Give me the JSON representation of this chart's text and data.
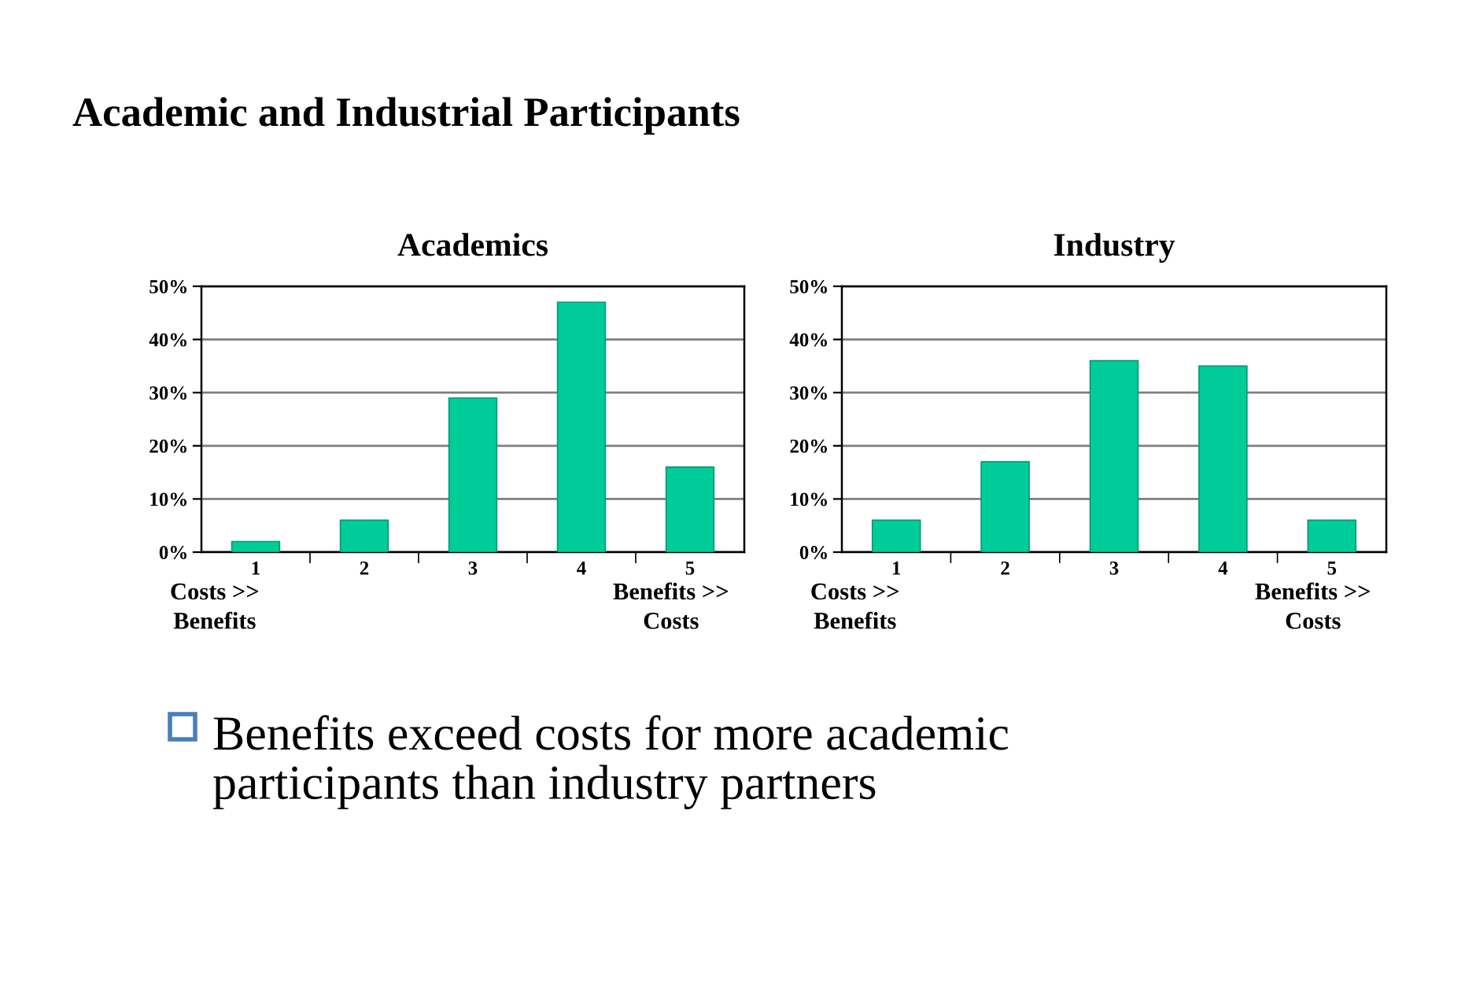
{
  "chart_data": [
    {
      "type": "other",
      "title": "Academic and Industrial Participants",
      "annotations": [
        "Benefits exceed costs for more academic\nparticipants than industry partners"
      ]
    },
    {
      "type": "bar",
      "title": "Academics",
      "categories": [
        "1",
        "2",
        "3",
        "4",
        "5"
      ],
      "values": [
        2,
        6,
        29,
        47,
        16
      ],
      "color": "#00cc99",
      "ylim": [
        0,
        50
      ],
      "yticks": [
        {
          "value": 0,
          "label": "0%"
        },
        {
          "value": 10,
          "label": "10%"
        },
        {
          "value": 20,
          "label": "20%"
        },
        {
          "value": 30,
          "label": "30%"
        },
        {
          "value": 40,
          "label": "40%"
        },
        {
          "value": 50,
          "label": "50%"
        }
      ],
      "grid": "y",
      "annotations": [
        "Costs >>\nBenefits",
        "Benefits >>\nCosts"
      ]
    },
    {
      "type": "bar",
      "title": "Industry",
      "categories": [
        "1",
        "2",
        "3",
        "4",
        "5"
      ],
      "values": [
        6,
        17,
        36,
        35,
        6
      ],
      "color": "#00cc99",
      "ylim": [
        0,
        50
      ],
      "yticks": [
        {
          "value": 0,
          "label": "0%"
        },
        {
          "value": 10,
          "label": "10%"
        },
        {
          "value": 20,
          "label": "20%"
        },
        {
          "value": 30,
          "label": "30%"
        },
        {
          "value": 40,
          "label": "40%"
        },
        {
          "value": 50,
          "label": "50%"
        }
      ],
      "grid": "y",
      "annotations": [
        "Costs >>\nBenefits",
        "Benefits >>\nCosts"
      ]
    }
  ]
}
